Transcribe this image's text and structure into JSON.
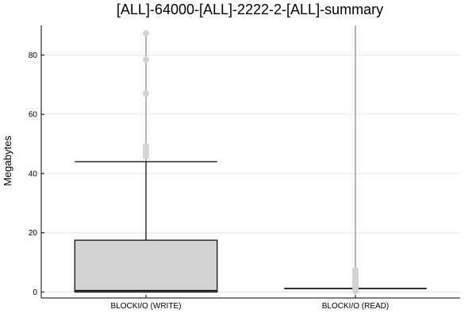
{
  "chart_data": {
    "type": "box",
    "title": "[ALL]-64000-[ALL]-2222-2-[ALL]-summary",
    "xlabel": "",
    "ylabel": "Megabytes",
    "ylim": [
      -2,
      90
    ],
    "yticks": [
      0,
      20,
      40,
      60,
      80
    ],
    "grid": true,
    "categories": [
      "BLOCKI/O (WRITE)",
      "BLOCKI/O (READ)"
    ],
    "boxes": [
      {
        "label": "BLOCKI/O (WRITE)",
        "min": 0,
        "q1": 0,
        "median": 0.5,
        "q3": 17.5,
        "whisker_low": 0,
        "whisker_high": 44,
        "outliers": [
          45.8,
          46.5,
          47.2,
          47.8,
          48.5,
          49.2,
          67,
          78.5,
          87.3
        ]
      },
      {
        "label": "BLOCKI/O (READ)",
        "min": 0,
        "q1": 1.2,
        "median": 1.2,
        "q3": 1.2,
        "whisker_low": 1.2,
        "whisker_high": 1.2,
        "outliers": [
          0.3,
          0.8,
          1.6,
          2.2,
          2.8,
          3.4,
          4.0,
          4.6,
          5.2,
          5.8,
          6.4,
          7.0,
          7.5
        ],
        "outlier_line_max": 90
      }
    ],
    "colors": {
      "box_fill": "#d3d3d3",
      "box_stroke": "#000000",
      "outlier": "#d3d3d3",
      "outlier_line": "#b5b5b5",
      "grid": "#e6e6e6",
      "axis": "#000000"
    }
  }
}
